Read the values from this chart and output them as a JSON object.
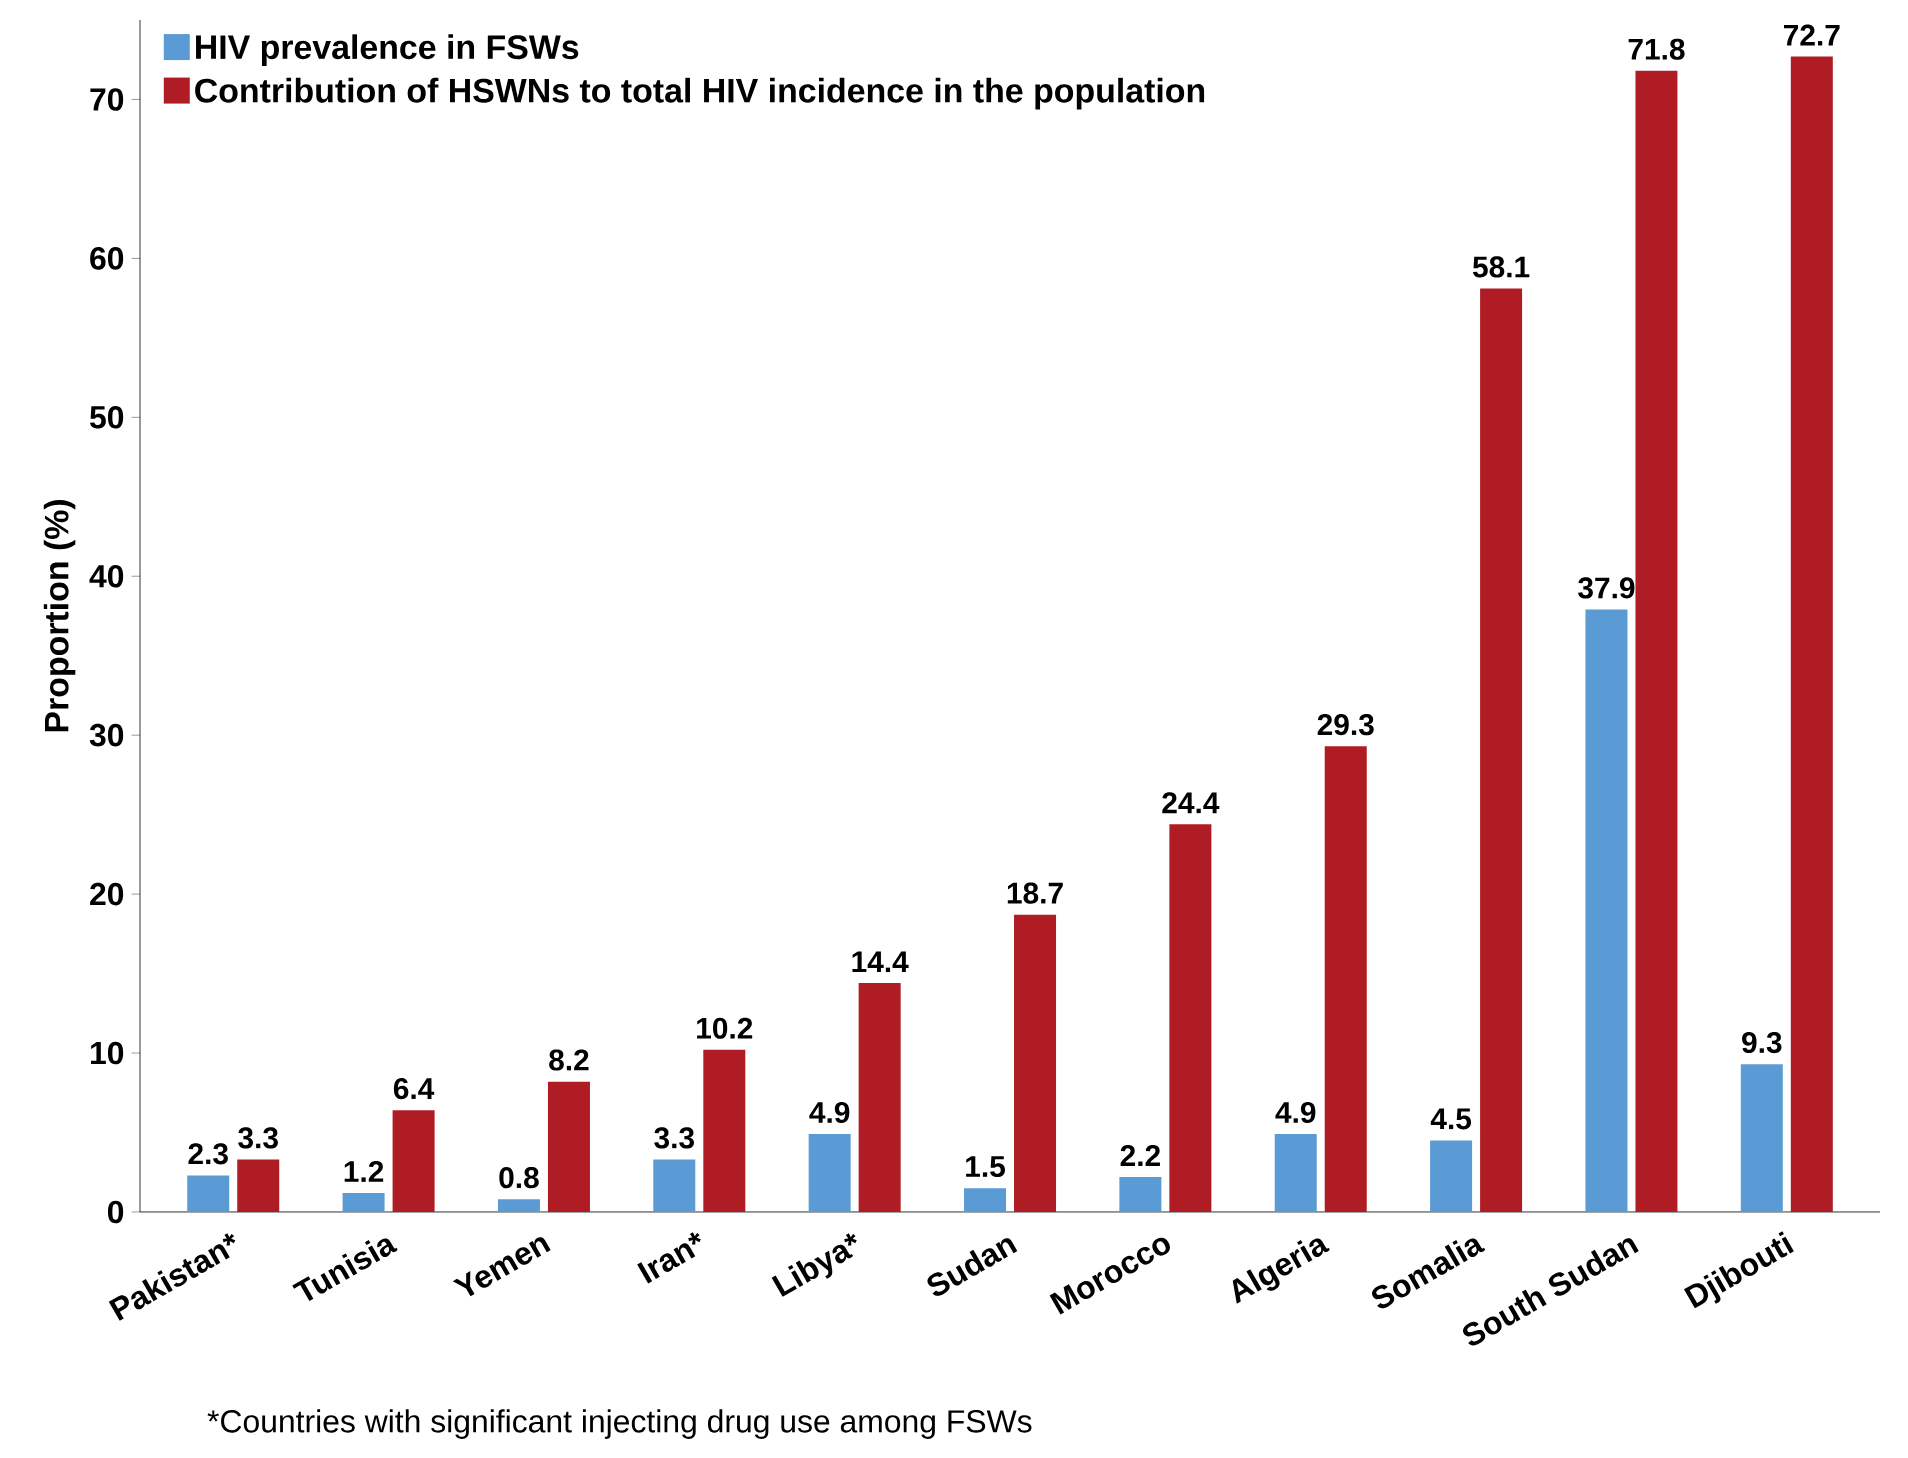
{
  "chart_data": {
    "type": "bar",
    "ylabel": "Proportion (%)",
    "categories": [
      "Pakistan*",
      "Tunisia",
      "Yemen",
      "Iran*",
      "Libya*",
      "Sudan",
      "Morocco",
      "Algeria",
      "Somalia",
      "South Sudan",
      "Djibouti"
    ],
    "series": [
      {
        "name": "HIV prevalence in FSWs",
        "color": "#5b9bd5",
        "values": [
          2.3,
          1.2,
          0.8,
          3.3,
          4.9,
          1.5,
          2.2,
          4.9,
          4.5,
          37.9,
          9.3
        ]
      },
      {
        "name": "Contribution of HSWNs to total HIV incidence in the population",
        "color": "#b01c24",
        "values": [
          3.3,
          6.4,
          8.2,
          10.2,
          14.4,
          18.7,
          24.4,
          29.3,
          58.1,
          71.8,
          72.7
        ]
      }
    ],
    "ylim": [
      0,
      75
    ],
    "yticks": [
      0,
      10,
      20,
      30,
      40,
      50,
      60,
      70
    ],
    "grid": false,
    "legend": "top left",
    "data_labels": true,
    "annotations": [
      "*Countries with significant injecting drug use among FSWs"
    ]
  }
}
